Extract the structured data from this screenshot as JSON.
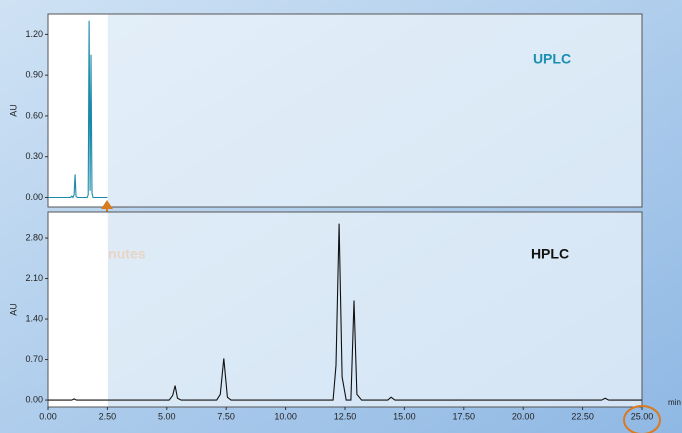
{
  "chart_data": [
    {
      "type": "line",
      "ylabel": "AU",
      "annotation": "2.5 minutes",
      "xlim": [
        0,
        25
      ],
      "ylim": [
        -0.07,
        1.35
      ],
      "yticks": [
        {
          "value": 0,
          "label": "0.00"
        },
        {
          "value": 0.3,
          "label": "0.30"
        },
        {
          "value": 0.6,
          "label": "0.60"
        },
        {
          "value": 0.9,
          "label": "0.90"
        },
        {
          "value": 1.2,
          "label": "1.20"
        }
      ],
      "series": [
        {
          "name": "UPLC",
          "color": "#1a8aa8",
          "x": [
            0,
            0.95,
            1.0,
            1.05,
            1.1,
            1.14,
            1.18,
            1.24,
            1.65,
            1.69,
            1.73,
            1.77,
            1.81,
            1.85,
            1.9,
            2.5
          ],
          "values": [
            0,
            0,
            0.01,
            0,
            0.02,
            0.17,
            0.01,
            0,
            0,
            0.02,
            1.3,
            0.05,
            1.05,
            0.03,
            0,
            0
          ]
        }
      ]
    },
    {
      "type": "line",
      "ylabel": "AU",
      "xlabel": "min",
      "xlim": [
        0,
        25
      ],
      "ylim": [
        -0.12,
        3.25
      ],
      "xticks": [
        {
          "value": 0,
          "label": "0.00"
        },
        {
          "value": 2.5,
          "label": "2.50"
        },
        {
          "value": 5,
          "label": "5.00"
        },
        {
          "value": 7.5,
          "label": "7.50"
        },
        {
          "value": 10,
          "label": "10.00"
        },
        {
          "value": 12.5,
          "label": "12.50"
        },
        {
          "value": 15,
          "label": "15.00"
        },
        {
          "value": 17.5,
          "label": "17.50"
        },
        {
          "value": 20,
          "label": "20.00"
        },
        {
          "value": 22.5,
          "label": "22.50"
        },
        {
          "value": 25,
          "label": "25.00"
        }
      ],
      "yticks": [
        {
          "value": 0,
          "label": "0.00"
        },
        {
          "value": 0.7,
          "label": "0.70"
        },
        {
          "value": 1.4,
          "label": "1.40"
        },
        {
          "value": 2.1,
          "label": "2.10"
        },
        {
          "value": 2.8,
          "label": "2.80"
        }
      ],
      "series": [
        {
          "name": "HPLC",
          "color": "#111111",
          "x": [
            0,
            1.0,
            1.1,
            1.2,
            5.1,
            5.25,
            5.35,
            5.45,
            5.6,
            7.1,
            7.25,
            7.4,
            7.55,
            7.7,
            12.0,
            12.12,
            12.25,
            12.38,
            12.55,
            12.75,
            12.88,
            13.0,
            13.2,
            14.3,
            14.44,
            14.6,
            23.3,
            23.45,
            23.6,
            25
          ],
          "values": [
            0,
            0,
            0.02,
            0,
            0,
            0.08,
            0.25,
            0.03,
            0,
            0,
            0.1,
            0.72,
            0.05,
            0,
            0,
            0.6,
            3.05,
            0.4,
            0,
            0,
            1.72,
            0.1,
            0,
            0,
            0.05,
            0,
            0,
            0.03,
            0,
            0
          ]
        }
      ]
    }
  ]
}
